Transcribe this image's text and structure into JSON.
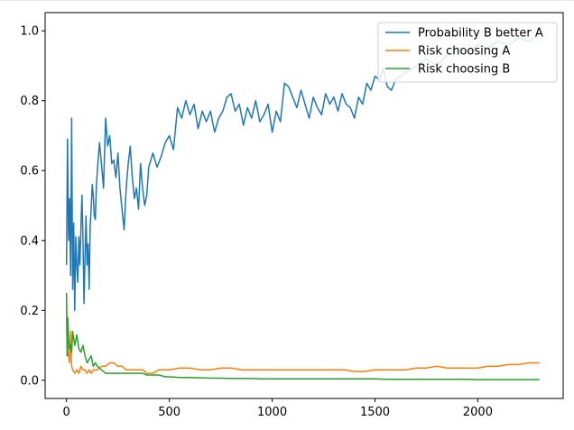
{
  "chart_data": {
    "type": "line",
    "xlim": [
      -104,
      2415
    ],
    "ylim": [
      -0.052,
      1.052
    ],
    "x_ticks": [
      0,
      500,
      1000,
      1500,
      2000
    ],
    "y_ticks": [
      0.0,
      0.2,
      0.4,
      0.6,
      0.8,
      1.0
    ],
    "x_tick_labels": [
      "0",
      "500",
      "1000",
      "1500",
      "2000"
    ],
    "y_tick_labels": [
      "0.0",
      "0.2",
      "0.4",
      "0.6",
      "0.8",
      "1.0"
    ],
    "legend_position": "top-right",
    "grid": false,
    "series": [
      {
        "name": "Probability B better A",
        "color": "#1f77b4",
        "x": [
          0,
          5,
          10,
          15,
          20,
          25,
          30,
          35,
          40,
          45,
          50,
          55,
          60,
          65,
          70,
          75,
          80,
          85,
          90,
          95,
          100,
          105,
          110,
          115,
          120,
          125,
          130,
          135,
          140,
          145,
          150,
          160,
          170,
          180,
          190,
          200,
          210,
          220,
          230,
          240,
          250,
          260,
          270,
          280,
          290,
          300,
          310,
          320,
          330,
          340,
          350,
          360,
          370,
          380,
          390,
          400,
          420,
          440,
          460,
          480,
          500,
          520,
          540,
          560,
          580,
          600,
          620,
          640,
          660,
          680,
          700,
          720,
          740,
          760,
          780,
          800,
          820,
          840,
          860,
          880,
          900,
          920,
          940,
          960,
          980,
          1000,
          1020,
          1040,
          1060,
          1080,
          1100,
          1120,
          1140,
          1160,
          1180,
          1200,
          1220,
          1240,
          1260,
          1280,
          1300,
          1320,
          1340,
          1360,
          1380,
          1400,
          1420,
          1440,
          1460,
          1480,
          1500,
          1520,
          1540,
          1560,
          1580,
          1600,
          1650,
          1700,
          1750,
          1800,
          1850,
          1900,
          1950,
          2000,
          2050,
          2100,
          2150,
          2200,
          2250,
          2300
        ],
        "y": [
          0.33,
          0.69,
          0.4,
          0.52,
          0.3,
          0.75,
          0.26,
          0.45,
          0.2,
          0.41,
          0.33,
          0.28,
          0.41,
          0.33,
          0.43,
          0.53,
          0.41,
          0.22,
          0.35,
          0.47,
          0.33,
          0.39,
          0.26,
          0.44,
          0.49,
          0.56,
          0.53,
          0.47,
          0.46,
          0.55,
          0.6,
          0.68,
          0.62,
          0.55,
          0.75,
          0.67,
          0.7,
          0.62,
          0.63,
          0.58,
          0.65,
          0.55,
          0.49,
          0.43,
          0.55,
          0.62,
          0.67,
          0.58,
          0.52,
          0.55,
          0.49,
          0.62,
          0.55,
          0.5,
          0.53,
          0.61,
          0.65,
          0.61,
          0.64,
          0.68,
          0.7,
          0.66,
          0.78,
          0.75,
          0.8,
          0.76,
          0.79,
          0.72,
          0.77,
          0.74,
          0.77,
          0.71,
          0.75,
          0.77,
          0.81,
          0.82,
          0.77,
          0.79,
          0.73,
          0.78,
          0.75,
          0.8,
          0.74,
          0.76,
          0.79,
          0.71,
          0.77,
          0.74,
          0.85,
          0.84,
          0.81,
          0.78,
          0.83,
          0.79,
          0.75,
          0.81,
          0.78,
          0.76,
          0.82,
          0.79,
          0.81,
          0.77,
          0.82,
          0.79,
          0.78,
          0.75,
          0.81,
          0.79,
          0.85,
          0.83,
          0.87,
          0.86,
          0.89,
          0.84,
          0.83,
          0.86,
          0.88,
          0.9,
          0.92,
          0.9,
          0.93,
          0.95,
          0.94,
          0.96,
          0.95,
          0.97,
          0.96,
          0.98,
          0.97,
          0.99
        ]
      },
      {
        "name": "Risk choosing A",
        "color": "#ff7f0e",
        "x": [
          0,
          3,
          6,
          10,
          15,
          20,
          25,
          30,
          40,
          50,
          60,
          70,
          80,
          90,
          100,
          110,
          120,
          130,
          140,
          150,
          170,
          190,
          210,
          230,
          250,
          270,
          290,
          310,
          330,
          350,
          370,
          390,
          420,
          450,
          480,
          500,
          550,
          600,
          650,
          700,
          750,
          800,
          850,
          900,
          950,
          1000,
          1050,
          1100,
          1150,
          1200,
          1250,
          1300,
          1350,
          1400,
          1450,
          1500,
          1550,
          1600,
          1650,
          1700,
          1750,
          1800,
          1850,
          1900,
          1950,
          2000,
          2050,
          2100,
          2150,
          2200,
          2250,
          2300
        ],
        "y": [
          0.23,
          0.07,
          0.14,
          0.07,
          0.05,
          0.14,
          0.04,
          0.03,
          0.02,
          0.03,
          0.02,
          0.04,
          0.03,
          0.03,
          0.02,
          0.03,
          0.02,
          0.03,
          0.03,
          0.03,
          0.04,
          0.04,
          0.05,
          0.05,
          0.04,
          0.04,
          0.03,
          0.03,
          0.03,
          0.03,
          0.03,
          0.02,
          0.02,
          0.03,
          0.03,
          0.03,
          0.035,
          0.035,
          0.03,
          0.03,
          0.035,
          0.035,
          0.03,
          0.03,
          0.03,
          0.03,
          0.03,
          0.03,
          0.03,
          0.03,
          0.03,
          0.03,
          0.03,
          0.025,
          0.025,
          0.03,
          0.03,
          0.03,
          0.03,
          0.035,
          0.035,
          0.04,
          0.035,
          0.035,
          0.035,
          0.035,
          0.04,
          0.04,
          0.045,
          0.045,
          0.05,
          0.05
        ]
      },
      {
        "name": "Risk choosing B",
        "color": "#2ca02c",
        "x": [
          0,
          3,
          6,
          10,
          15,
          20,
          25,
          30,
          40,
          50,
          60,
          70,
          80,
          90,
          100,
          110,
          120,
          130,
          140,
          150,
          170,
          190,
          210,
          230,
          250,
          270,
          290,
          310,
          330,
          350,
          370,
          390,
          420,
          450,
          480,
          500,
          550,
          600,
          650,
          700,
          750,
          800,
          850,
          900,
          950,
          1000,
          1050,
          1100,
          1150,
          1200,
          1250,
          1300,
          1350,
          1400,
          1450,
          1500,
          1550,
          1600,
          1650,
          1700,
          1750,
          1800,
          1850,
          1900,
          1950,
          2000,
          2050,
          2100,
          2150,
          2200,
          2250,
          2300
        ],
        "y": [
          0.25,
          0.07,
          0.18,
          0.12,
          0.09,
          0.1,
          0.08,
          0.14,
          0.1,
          0.13,
          0.09,
          0.08,
          0.1,
          0.07,
          0.05,
          0.06,
          0.07,
          0.04,
          0.05,
          0.04,
          0.03,
          0.02,
          0.02,
          0.02,
          0.02,
          0.02,
          0.02,
          0.02,
          0.02,
          0.02,
          0.02,
          0.015,
          0.015,
          0.015,
          0.01,
          0.01,
          0.008,
          0.008,
          0.007,
          0.006,
          0.006,
          0.005,
          0.005,
          0.005,
          0.004,
          0.004,
          0.004,
          0.004,
          0.004,
          0.004,
          0.004,
          0.004,
          0.004,
          0.004,
          0.004,
          0.004,
          0.003,
          0.003,
          0.003,
          0.003,
          0.003,
          0.003,
          0.003,
          0.003,
          0.003,
          0.002,
          0.002,
          0.002,
          0.002,
          0.002,
          0.002,
          0.002
        ]
      }
    ]
  }
}
